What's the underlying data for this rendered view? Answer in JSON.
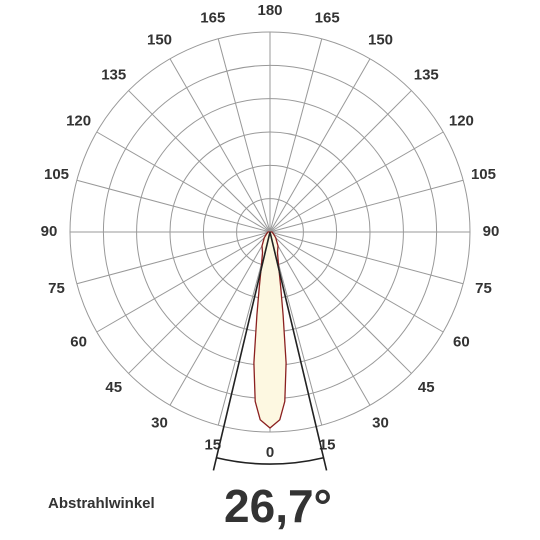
{
  "chart_data": {
    "type": "polar",
    "angle_ticks": [
      {
        "value": -180,
        "label": "180"
      },
      {
        "value": -165,
        "label": "165"
      },
      {
        "value": -150,
        "label": "150"
      },
      {
        "value": -135,
        "label": "135"
      },
      {
        "value": -120,
        "label": "120"
      },
      {
        "value": -105,
        "label": "105"
      },
      {
        "value": -90,
        "label": "90"
      },
      {
        "value": -75,
        "label": "75"
      },
      {
        "value": -60,
        "label": "60"
      },
      {
        "value": -45,
        "label": "45"
      },
      {
        "value": -30,
        "label": "30"
      },
      {
        "value": -15,
        "label": "15"
      },
      0,
      15,
      30,
      45,
      60,
      75,
      90,
      105,
      120,
      135,
      150,
      165
    ],
    "rlim": [
      0,
      100
    ],
    "rgrid": [
      16.7,
      33.3,
      50,
      66.7,
      83.3,
      100
    ],
    "grid_color": "#999999",
    "series": [
      {
        "color": "#8b2020",
        "fill": "#fdf8e1",
        "angles": [
          -180,
          -90,
          -60,
          -45,
          -30,
          -20,
          -14,
          -11,
          -9,
          -7,
          -5,
          -3,
          0,
          3,
          5,
          7,
          9,
          11,
          14,
          20,
          30,
          45,
          60,
          90,
          180
        ],
        "values": [
          0,
          1,
          2,
          4,
          8,
          11,
          18,
          28,
          42,
          66,
          85,
          94,
          98,
          94,
          85,
          66,
          42,
          28,
          18,
          11,
          8,
          4,
          2,
          1,
          0
        ]
      }
    ],
    "beam_angle": 26.7,
    "beam_angle_label": "26,7°",
    "beam_angle_title": "Abstrahlwinkel"
  }
}
